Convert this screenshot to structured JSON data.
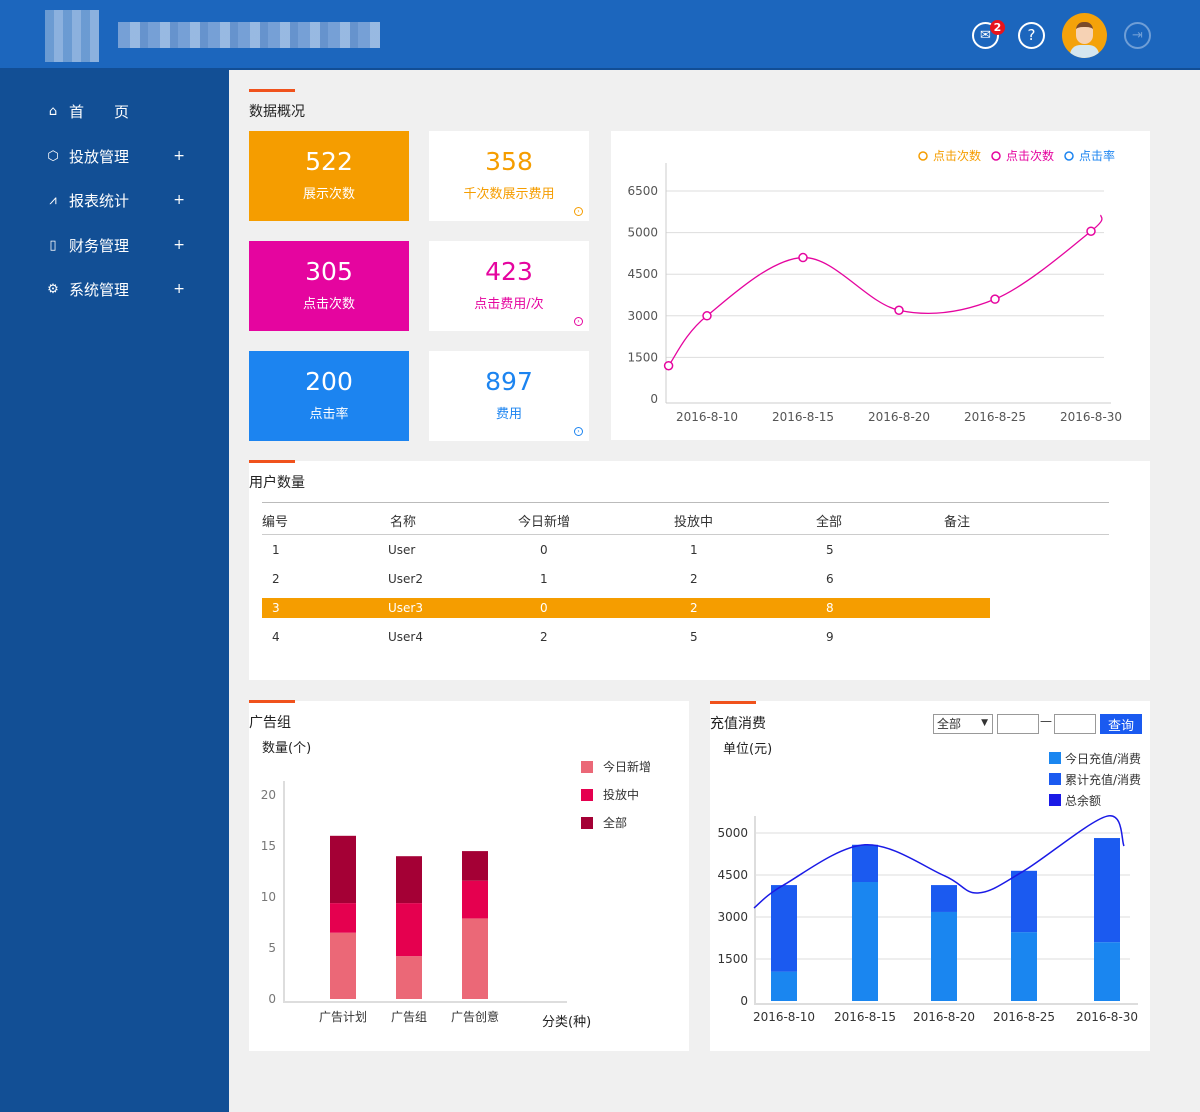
{
  "header": {
    "mail_badge": "2",
    "help_icon": "?"
  },
  "sidebar": {
    "items": [
      {
        "label": "首　　页",
        "icon": "home-icon"
      },
      {
        "label": "投放管理",
        "icon": "cube-icon",
        "expand": "+"
      },
      {
        "label": "报表统计",
        "icon": "chart-icon",
        "expand": "+"
      },
      {
        "label": "财务管理",
        "icon": "finance-icon",
        "expand": "+"
      },
      {
        "label": "系统管理",
        "icon": "gears-icon",
        "expand": "+"
      }
    ]
  },
  "overview": {
    "title": "数据概况",
    "cards": [
      {
        "value": "522",
        "label": "展示次数",
        "color": "#f59d00"
      },
      {
        "value": "358",
        "label": "千次数展示费用",
        "color": "#f59d00"
      },
      {
        "value": "305",
        "label": "点击次数",
        "color": "#e5059f"
      },
      {
        "value": "423",
        "label": "点击费用/次",
        "color": "#e5059f"
      },
      {
        "value": "200",
        "label": "点击率",
        "color": "#1c84f0"
      },
      {
        "value": "897",
        "label": "费用",
        "color": "#1c84f0"
      }
    ]
  },
  "users": {
    "title": "用户数量",
    "columns": [
      "编号",
      "名称",
      "今日新增",
      "投放中",
      "全部",
      "备注"
    ],
    "rows": [
      [
        "1",
        "User",
        "0",
        "1",
        "5",
        ""
      ],
      [
        "2",
        "User2",
        "1",
        "2",
        "6",
        ""
      ],
      [
        "3",
        "User3",
        "0",
        "2",
        "8",
        ""
      ],
      [
        "4",
        "User4",
        "2",
        "5",
        "9",
        ""
      ]
    ],
    "selected_row": 2
  },
  "adgroup": {
    "title": "广告组"
  },
  "recharge": {
    "title": "充值消费",
    "select": "全部",
    "query_button": "查询",
    "dash": "—"
  },
  "chart_data": [
    {
      "type": "line",
      "legend": [
        {
          "label": "点击次数",
          "color": "#f59d00"
        },
        {
          "label": "点击次数",
          "color": "#e5059f"
        },
        {
          "label": "点击率",
          "color": "#1c84f0"
        }
      ],
      "legend_placement": "top-right",
      "x_ticks": [
        "2016-8-10",
        "2016-8-15",
        "2016-8-20",
        "2016-8-25",
        "2016-8-30"
      ],
      "y_ticks": [
        "0",
        "1500",
        "3000",
        "4500",
        "5000",
        "6500"
      ],
      "series": [
        {
          "name": "点击次数",
          "color": "#e5059f",
          "points": [
            [
              "2016-8-8",
              1200
            ],
            [
              "2016-8-10",
              3000
            ],
            [
              "2016-8-15",
              4700
            ],
            [
              "2016-8-20",
              3200
            ],
            [
              "2016-8-25",
              3600
            ],
            [
              "2016-8-30",
              5050
            ]
          ]
        }
      ]
    },
    {
      "type": "bar",
      "stacked": true,
      "ylabel": "数量(个)",
      "xlabel": "分类(种)",
      "categories": [
        "广告计划",
        "广告组",
        "广告创意"
      ],
      "y_ticks": [
        "0",
        "5",
        "10",
        "15",
        "20"
      ],
      "ylim": [
        0,
        20
      ],
      "series": [
        {
          "name": "今日新增",
          "color": "#eb6877",
          "values": [
            6.5,
            4.2,
            7.9
          ]
        },
        {
          "name": "投放中",
          "color": "#e5004f",
          "values": [
            2.9,
            5.2,
            3.7
          ]
        },
        {
          "name": "全部",
          "color": "#a40035",
          "values": [
            6.6,
            4.6,
            2.9
          ]
        }
      ],
      "legend_placement": "top-right"
    },
    {
      "type": "bar",
      "stacked": true,
      "ylabel": "单位(元)",
      "categories": [
        "2016-8-10",
        "2016-8-15",
        "2016-8-20",
        "2016-8-25",
        "2016-8-30"
      ],
      "y_ticks": [
        "0",
        "1500",
        "3000",
        "4500",
        "5000"
      ],
      "series": [
        {
          "name": "今日充值/消费",
          "color": "#1a86f0",
          "values": [
            1050,
            4250,
            3180,
            2460,
            2100
          ]
        },
        {
          "name": "累计充值/消费",
          "color": "#1b5af0",
          "values": [
            3090,
            610,
            960,
            2090,
            2840
          ]
        },
        {
          "name": "总余额",
          "color": "#1a1ae6",
          "type": "line",
          "values": [
            4150,
            4860,
            4480,
            4550,
            5200
          ]
        }
      ],
      "legend_placement": "top-right"
    }
  ]
}
